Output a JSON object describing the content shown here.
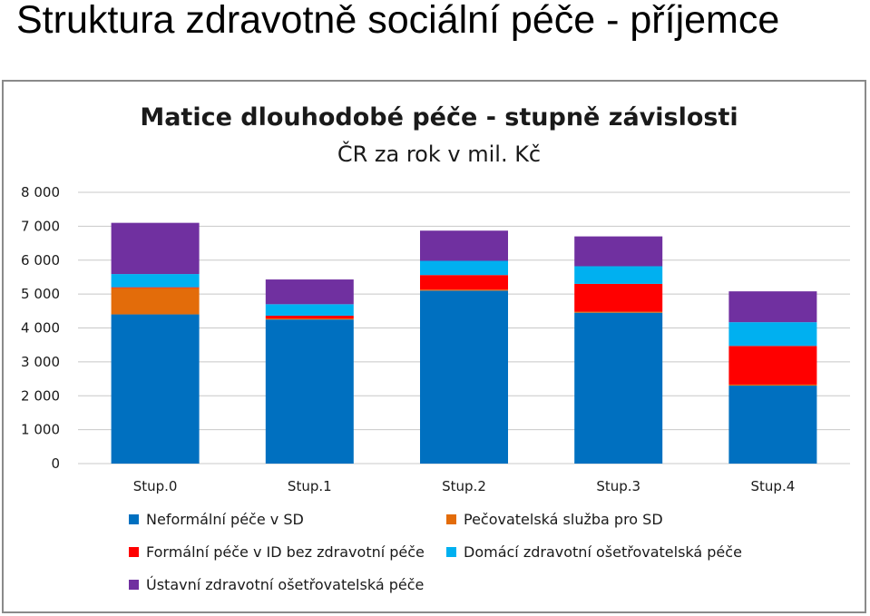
{
  "slide": {
    "title": "Struktura zdravotně sociální péče - příjemce"
  },
  "chart_data": {
    "type": "bar",
    "stacked": true,
    "title": "Matice dlouhodobé péče - stupně závislosti",
    "subtitle": "ČR za rok v mil. Kč",
    "categories": [
      "Stup.0",
      "Stup.1",
      "Stup.2",
      "Stup.3",
      "Stup.4"
    ],
    "ylim": [
      0,
      8000
    ],
    "yticks": [
      0,
      1000,
      2000,
      3000,
      4000,
      5000,
      6000,
      7000,
      8000
    ],
    "ytick_labels": [
      "0",
      "1 000",
      "2 000",
      "3 000",
      "4 000",
      "5 000",
      "6 000",
      "7 000",
      "8 000"
    ],
    "grid": true,
    "legend_position": "bottom",
    "series": [
      {
        "name": "Neformální péče v SD",
        "color": "#0070c0",
        "values": [
          4400,
          4250,
          5100,
          4450,
          2300
        ]
      },
      {
        "name": "Pečovatelská služba pro SD",
        "color": "#e36c0a",
        "values": [
          780,
          30,
          30,
          30,
          30
        ]
      },
      {
        "name": "Formální péče v ID bez zdravotní péče",
        "color": "#ff0000",
        "values": [
          20,
          80,
          430,
          820,
          1140
        ]
      },
      {
        "name": "Domácí zdravotní ošetřovatelská péče",
        "color": "#00b0f0",
        "values": [
          390,
          340,
          420,
          520,
          700
        ]
      },
      {
        "name": "Ústavní zdravotní ošetřovatelská péče",
        "color": "#7030a0",
        "values": [
          1510,
          730,
          890,
          880,
          910
        ]
      }
    ]
  }
}
